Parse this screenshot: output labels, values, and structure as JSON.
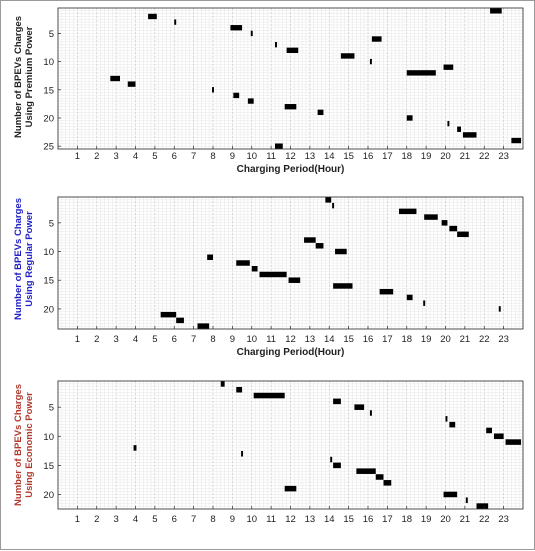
{
  "chart_data": [
    {
      "type": "scatter",
      "xlabel": "Charging Period(Hour)",
      "ylabel": [
        "Number of BPEVs Charges",
        "Using Premium Power"
      ],
      "ylabel_color": "#222222",
      "x_ticks": [
        1,
        2,
        3,
        4,
        5,
        6,
        7,
        8,
        9,
        10,
        11,
        12,
        13,
        14,
        15,
        16,
        17,
        18,
        19,
        20,
        21,
        22,
        23
      ],
      "y_ticks": [
        5,
        10,
        15,
        20,
        25
      ],
      "xlim": [
        0,
        24
      ],
      "ylim": [
        25.5,
        0.5
      ],
      "y_reversed": true,
      "grid": true,
      "bars": [
        {
          "y": 1,
          "x0": 22.3,
          "x1": 22.9
        },
        {
          "y": 2,
          "x0": 4.65,
          "x1": 5.1
        },
        {
          "y": 3,
          "x0": 6.0,
          "x1": 6.1
        },
        {
          "y": 4,
          "x0": 8.9,
          "x1": 9.5
        },
        {
          "y": 5,
          "x0": 9.95,
          "x1": 10.05
        },
        {
          "y": 6,
          "x0": 16.2,
          "x1": 16.7
        },
        {
          "y": 7,
          "x0": 11.2,
          "x1": 11.3
        },
        {
          "y": 8,
          "x0": 11.8,
          "x1": 12.4
        },
        {
          "y": 9,
          "x0": 14.6,
          "x1": 15.3
        },
        {
          "y": 10,
          "x0": 16.1,
          "x1": 16.2
        },
        {
          "y": 11,
          "x0": 19.9,
          "x1": 20.4
        },
        {
          "y": 12,
          "x0": 18.0,
          "x1": 19.5
        },
        {
          "y": 13,
          "x0": 2.7,
          "x1": 3.2
        },
        {
          "y": 14,
          "x0": 3.6,
          "x1": 4.0
        },
        {
          "y": 15,
          "x0": 7.95,
          "x1": 8.05
        },
        {
          "y": 16,
          "x0": 9.05,
          "x1": 9.35
        },
        {
          "y": 17,
          "x0": 9.8,
          "x1": 10.1
        },
        {
          "y": 18,
          "x0": 11.7,
          "x1": 12.3
        },
        {
          "y": 19,
          "x0": 13.4,
          "x1": 13.7
        },
        {
          "y": 20,
          "x0": 18.0,
          "x1": 18.3
        },
        {
          "y": 21,
          "x0": 20.1,
          "x1": 20.2
        },
        {
          "y": 22,
          "x0": 20.6,
          "x1": 20.8
        },
        {
          "y": 23,
          "x0": 20.9,
          "x1": 21.6
        },
        {
          "y": 24,
          "x0": 23.4,
          "x1": 23.9
        },
        {
          "y": 25,
          "x0": 11.2,
          "x1": 11.6
        }
      ]
    },
    {
      "type": "scatter",
      "xlabel": "Charging Period(Hour)",
      "ylabel": [
        "Number of BPEVs Charges",
        "Using Regular Power"
      ],
      "ylabel_color": "#2020c8",
      "x_ticks": [
        1,
        2,
        3,
        4,
        5,
        6,
        7,
        8,
        9,
        10,
        11,
        12,
        13,
        14,
        15,
        16,
        17,
        18,
        19,
        20,
        21,
        22,
        23
      ],
      "y_ticks": [
        5,
        10,
        15,
        20
      ],
      "xlim": [
        0,
        24
      ],
      "ylim": [
        23.5,
        0.5
      ],
      "y_reversed": true,
      "grid": true,
      "bars": [
        {
          "y": 1,
          "x0": 13.8,
          "x1": 14.1
        },
        {
          "y": 2,
          "x0": 14.15,
          "x1": 14.25
        },
        {
          "y": 3,
          "x0": 17.6,
          "x1": 18.5
        },
        {
          "y": 4,
          "x0": 18.9,
          "x1": 19.6
        },
        {
          "y": 5,
          "x0": 19.8,
          "x1": 20.1
        },
        {
          "y": 6,
          "x0": 20.2,
          "x1": 20.6
        },
        {
          "y": 7,
          "x0": 20.6,
          "x1": 21.2
        },
        {
          "y": 8,
          "x0": 12.7,
          "x1": 13.3
        },
        {
          "y": 9,
          "x0": 13.3,
          "x1": 13.7
        },
        {
          "y": 10,
          "x0": 14.3,
          "x1": 14.9
        },
        {
          "y": 11,
          "x0": 7.7,
          "x1": 8.0
        },
        {
          "y": 12,
          "x0": 9.2,
          "x1": 9.9
        },
        {
          "y": 13,
          "x0": 10.0,
          "x1": 10.3
        },
        {
          "y": 14,
          "x0": 10.4,
          "x1": 11.8
        },
        {
          "y": 15,
          "x0": 11.9,
          "x1": 12.5
        },
        {
          "y": 16,
          "x0": 14.2,
          "x1": 15.2
        },
        {
          "y": 17,
          "x0": 16.6,
          "x1": 17.3
        },
        {
          "y": 18,
          "x0": 18.0,
          "x1": 18.3
        },
        {
          "y": 19,
          "x0": 18.85,
          "x1": 18.95
        },
        {
          "y": 20,
          "x0": 22.75,
          "x1": 22.85
        },
        {
          "y": 21,
          "x0": 5.3,
          "x1": 6.1
        },
        {
          "y": 22,
          "x0": 6.1,
          "x1": 6.5
        },
        {
          "y": 23,
          "x0": 7.2,
          "x1": 7.8
        }
      ]
    },
    {
      "type": "scatter",
      "xlabel": "",
      "ylabel": [
        "Number of BPEVs Charges",
        "Using Economic Power"
      ],
      "ylabel_color": "#b03a2e",
      "x_ticks": [
        1,
        2,
        3,
        4,
        5,
        6,
        7,
        8,
        9,
        10,
        11,
        12,
        13,
        14,
        15,
        16,
        17,
        18,
        19,
        20,
        21,
        22,
        23
      ],
      "y_ticks": [
        5,
        10,
        15,
        20
      ],
      "xlim": [
        0,
        24
      ],
      "ylim": [
        22.5,
        0.5
      ],
      "y_reversed": true,
      "grid": true,
      "bars": [
        {
          "y": 1,
          "x0": 8.4,
          "x1": 8.6
        },
        {
          "y": 2,
          "x0": 9.2,
          "x1": 9.5
        },
        {
          "y": 3,
          "x0": 10.1,
          "x1": 11.7
        },
        {
          "y": 4,
          "x0": 14.2,
          "x1": 14.6
        },
        {
          "y": 5,
          "x0": 15.3,
          "x1": 15.8
        },
        {
          "y": 6,
          "x0": 16.1,
          "x1": 16.2
        },
        {
          "y": 7,
          "x0": 20.0,
          "x1": 20.1
        },
        {
          "y": 8,
          "x0": 20.2,
          "x1": 20.5
        },
        {
          "y": 9,
          "x0": 22.1,
          "x1": 22.4
        },
        {
          "y": 10,
          "x0": 22.5,
          "x1": 23.0
        },
        {
          "y": 11,
          "x0": 23.1,
          "x1": 23.9
        },
        {
          "y": 12,
          "x0": 3.9,
          "x1": 4.05
        },
        {
          "y": 13,
          "x0": 9.45,
          "x1": 9.55
        },
        {
          "y": 14,
          "x0": 14.05,
          "x1": 14.15
        },
        {
          "y": 15,
          "x0": 14.2,
          "x1": 14.6
        },
        {
          "y": 16,
          "x0": 15.4,
          "x1": 16.4
        },
        {
          "y": 17,
          "x0": 16.4,
          "x1": 16.8
        },
        {
          "y": 18,
          "x0": 16.8,
          "x1": 17.2
        },
        {
          "y": 19,
          "x0": 11.7,
          "x1": 12.3
        },
        {
          "y": 20,
          "x0": 19.9,
          "x1": 20.6
        },
        {
          "y": 21,
          "x0": 21.05,
          "x1": 21.15
        },
        {
          "y": 22,
          "x0": 21.6,
          "x1": 22.2
        }
      ]
    }
  ]
}
